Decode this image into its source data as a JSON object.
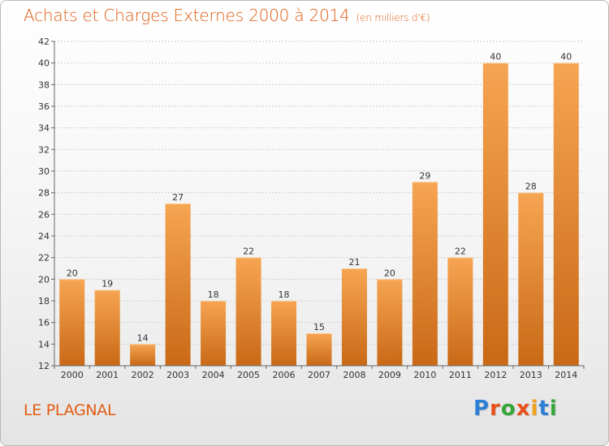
{
  "header": {
    "title": "Achats et Charges Externes 2000 à 2014",
    "subtitle": "(en milliers d'€)"
  },
  "footer": {
    "place": "LE PLAGNAL",
    "logo": {
      "letters": [
        "P",
        "r",
        "o",
        "x",
        "i",
        "t",
        "i"
      ],
      "colors": [
        "#2e7fd6",
        "#e8501a",
        "#35a53a",
        "#e8501a",
        "#f1a11a",
        "#2e7fd6",
        "#35a53a"
      ]
    }
  },
  "colors": {
    "bar_light": "#f6a552",
    "bar_dark": "#c96916",
    "title": "#e25c12"
  },
  "chart_data": {
    "type": "bar",
    "title": "Achats et Charges Externes 2000 à 2014",
    "subtitle": "(en milliers d'€)",
    "xlabel": "",
    "ylabel": "",
    "categories": [
      "2000",
      "2001",
      "2002",
      "2003",
      "2004",
      "2005",
      "2006",
      "2007",
      "2008",
      "2009",
      "2010",
      "2011",
      "2012",
      "2013",
      "2014"
    ],
    "values": [
      20,
      19,
      14,
      27,
      18,
      22,
      18,
      15,
      21,
      20,
      29,
      22,
      40,
      28,
      40
    ],
    "ylim": [
      12,
      42
    ],
    "yticks": [
      12,
      14,
      16,
      18,
      20,
      22,
      24,
      26,
      28,
      30,
      32,
      34,
      36,
      38,
      40,
      42
    ],
    "grid": true,
    "data_labels": true
  }
}
